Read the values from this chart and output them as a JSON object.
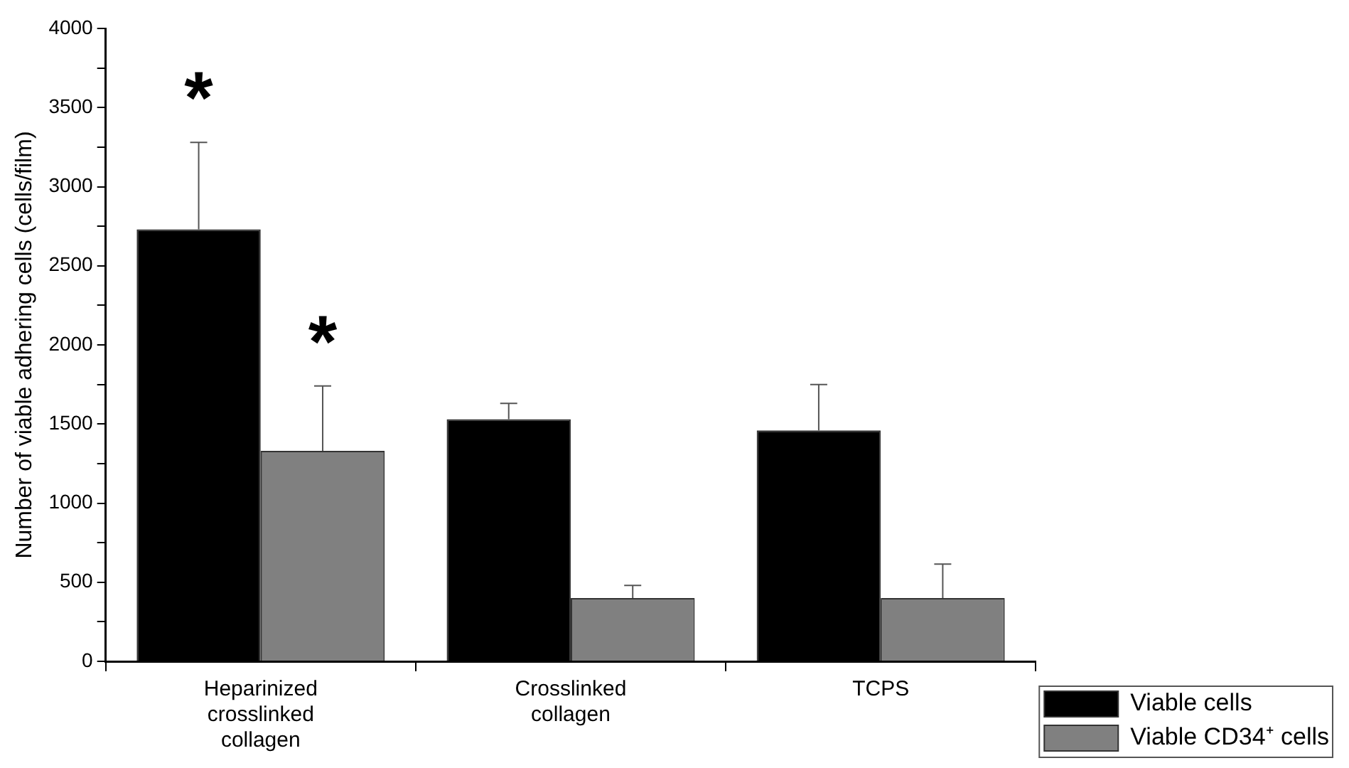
{
  "chart_data": {
    "type": "bar",
    "ylabel": "Number of viable adhering cells (cells/film)",
    "categories": [
      "Heparinized crosslinked collagen",
      "Crosslinked collagen",
      "TCPS"
    ],
    "series": [
      {
        "name": "Viable cells",
        "color": "#000000",
        "values": [
          2730,
          1530,
          1460
        ],
        "errors": [
          [
            2730,
            3280
          ],
          [
            1530,
            1630
          ],
          [
            1460,
            1750
          ]
        ]
      },
      {
        "name": "Viable CD34⁺ cells",
        "color": "#808080",
        "values": [
          1330,
          400,
          400
        ],
        "errors": [
          [
            1330,
            1740
          ],
          [
            400,
            480
          ],
          [
            400,
            615
          ]
        ]
      }
    ],
    "ylim": [
      0,
      4000
    ],
    "yticks": [
      0,
      {
        "value": 250,
        "label": null
      },
      500,
      {
        "value": 750,
        "label": null
      },
      1000,
      {
        "value": 1250,
        "label": null
      },
      1500,
      {
        "value": 1750,
        "label": null
      },
      2000,
      {
        "value": 2250,
        "label": null
      },
      2500,
      {
        "value": 2750,
        "label": null
      },
      3000,
      {
        "value": 3250,
        "label": null
      },
      3500,
      {
        "value": 3750,
        "label": null
      },
      4000
    ],
    "annotations": [
      "*",
      "*"
    ],
    "grid": false,
    "legend": "bottom right"
  }
}
